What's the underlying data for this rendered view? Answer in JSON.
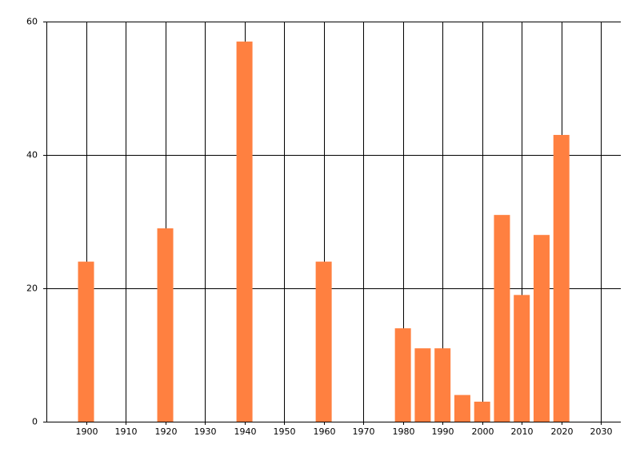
{
  "chart_data": {
    "type": "bar",
    "x": [
      1900,
      1920,
      1940,
      1960,
      1980,
      1985,
      1990,
      1995,
      2000,
      2005,
      2010,
      2015,
      2020
    ],
    "values": [
      24,
      29,
      57,
      24,
      14,
      11,
      11,
      4,
      3,
      31,
      19,
      28,
      43
    ],
    "color": "#ff8040",
    "xlim": [
      1890,
      2035
    ],
    "xticks": [
      1900,
      1910,
      1920,
      1930,
      1940,
      1950,
      1960,
      1970,
      1980,
      1990,
      2000,
      2010,
      2020,
      2030
    ],
    "ylim": [
      0,
      60
    ],
    "yticks": [
      0,
      20,
      40,
      60
    ],
    "grid": true
  }
}
